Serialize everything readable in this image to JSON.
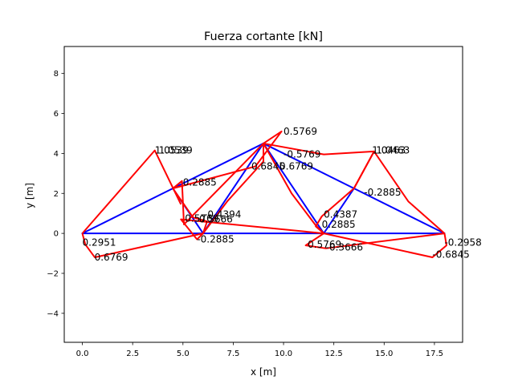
{
  "chart_data": {
    "type": "line",
    "title": "Fuerza cortante [kN]",
    "xlabel": "x [m]",
    "ylabel": "y [m]",
    "xlim": [
      -0.9,
      18.9
    ],
    "ylim": [
      -5.45,
      9.35
    ],
    "xticks": [
      0.0,
      2.5,
      5.0,
      7.5,
      10.0,
      12.5,
      15.0,
      17.5
    ],
    "xtick_labels": [
      "0.0",
      "2.5",
      "5.0",
      "7.5",
      "10.0",
      "12.5",
      "15.0",
      "17.5"
    ],
    "yticks": [
      -4,
      -2,
      0,
      2,
      4,
      6,
      8
    ],
    "ytick_labels": [
      "−4",
      "−2",
      "0",
      "2",
      "4",
      "6",
      "8"
    ],
    "grid": false,
    "structure_color": "#0000ff",
    "diagram_color": "#ff0000",
    "structure": [
      [
        [
          0,
          0
        ],
        [
          6,
          0
        ]
      ],
      [
        [
          6,
          0
        ],
        [
          12,
          0
        ]
      ],
      [
        [
          12,
          0
        ],
        [
          18,
          0
        ]
      ],
      [
        [
          0,
          0
        ],
        [
          4.5,
          2.25
        ]
      ],
      [
        [
          4.5,
          2.25
        ],
        [
          9,
          4.5
        ]
      ],
      [
        [
          9,
          4.5
        ],
        [
          13.5,
          2.25
        ]
      ],
      [
        [
          13.5,
          2.25
        ],
        [
          18,
          0
        ]
      ],
      [
        [
          4.5,
          2.25
        ],
        [
          6,
          0
        ]
      ],
      [
        [
          6,
          0
        ],
        [
          9,
          4.5
        ]
      ],
      [
        [
          9,
          4.5
        ],
        [
          12,
          0
        ]
      ],
      [
        [
          12,
          0
        ],
        [
          13.5,
          2.25
        ]
      ]
    ],
    "diagrams": [
      [
        [
          0,
          0
        ],
        [
          0.15,
          -0.56
        ],
        [
          0.62,
          -1.2
        ],
        [
          6,
          0
        ]
      ],
      [
        [
          6,
          0
        ],
        [
          5.7,
          -0.3
        ],
        [
          4.9,
          0.7
        ],
        [
          12,
          0
        ]
      ],
      [
        [
          12,
          0
        ],
        [
          11.1,
          -0.6
        ],
        [
          12.1,
          -0.75
        ],
        [
          18,
          0
        ]
      ],
      [
        [
          18,
          0
        ],
        [
          18.1,
          -0.6
        ],
        [
          17.4,
          -1.2
        ],
        [
          12,
          0
        ]
      ],
      [
        [
          0,
          0
        ],
        [
          3.6,
          4.15
        ],
        [
          4.9,
          1.45
        ]
      ],
      [
        [
          4.5,
          2.25
        ],
        [
          4.95,
          2.62
        ],
        [
          5.05,
          0.45
        ],
        [
          9,
          4.5
        ]
      ],
      [
        [
          9,
          4.5
        ],
        [
          9.9,
          5.1
        ],
        [
          8.6,
          3.35
        ],
        [
          4.5,
          2.25
        ]
      ],
      [
        [
          9,
          4.5
        ],
        [
          12,
          3.95
        ],
        [
          14.5,
          4.1
        ],
        [
          13.5,
          2.25
        ]
      ],
      [
        [
          13.5,
          2.25
        ],
        [
          14.5,
          4.1
        ],
        [
          16.2,
          1.6
        ],
        [
          18,
          0
        ]
      ],
      [
        [
          4.5,
          2.25
        ],
        [
          5.5,
          0.8
        ],
        [
          6.2,
          0.6
        ],
        [
          6,
          0
        ]
      ],
      [
        [
          6,
          0
        ],
        [
          7.2,
          1.6
        ],
        [
          9.0,
          3.6
        ],
        [
          9,
          4.5
        ]
      ],
      [
        [
          9,
          4.5
        ],
        [
          10.4,
          2.0
        ],
        [
          11.6,
          0.4
        ],
        [
          12,
          0
        ]
      ],
      [
        [
          12,
          0
        ],
        [
          11.6,
          0.35
        ],
        [
          11.9,
          0.85
        ],
        [
          13.5,
          2.25
        ]
      ]
    ],
    "labels": [
      {
        "x": 0.0,
        "y": -0.45,
        "text": "0.2951"
      },
      {
        "x": 0.6,
        "y": -1.2,
        "text": "0.6769"
      },
      {
        "x": 3.6,
        "y": 4.15,
        "text": "1.0539"
      },
      {
        "x": 3.8,
        "y": 4.15,
        "text": "1.0539"
      },
      {
        "x": 5.0,
        "y": 2.55,
        "text": "0.2885"
      },
      {
        "x": 5.1,
        "y": 0.75,
        "text": "0.5769"
      },
      {
        "x": 5.8,
        "y": 0.7,
        "text": "0.5666"
      },
      {
        "x": 6.05,
        "y": 0.95,
        "text": "-0.4394"
      },
      {
        "x": 5.7,
        "y": -0.3,
        "text": "-0.2885"
      },
      {
        "x": 8.4,
        "y": 3.35,
        "text": "0.6845"
      },
      {
        "x": 9.8,
        "y": 3.35,
        "text": "0.6769"
      },
      {
        "x": 10.0,
        "y": 5.1,
        "text": "0.5769"
      },
      {
        "x": 10.0,
        "y": 3.95,
        "text": "-0.5769"
      },
      {
        "x": 14.4,
        "y": 4.15,
        "text": "1.0463"
      },
      {
        "x": 14.6,
        "y": 4.15,
        "text": "1.0463"
      },
      {
        "x": 14.0,
        "y": 2.05,
        "text": "-0.2885"
      },
      {
        "x": 12.0,
        "y": 0.95,
        "text": "0.4387"
      },
      {
        "x": 11.9,
        "y": 0.45,
        "text": "0.2885"
      },
      {
        "x": 11.2,
        "y": -0.55,
        "text": "0.5769"
      },
      {
        "x": 12.1,
        "y": -0.7,
        "text": "-0.3666"
      },
      {
        "x": 18.0,
        "y": -0.45,
        "text": "-0.2958"
      },
      {
        "x": 17.4,
        "y": -1.05,
        "text": "-0.6845"
      }
    ]
  }
}
